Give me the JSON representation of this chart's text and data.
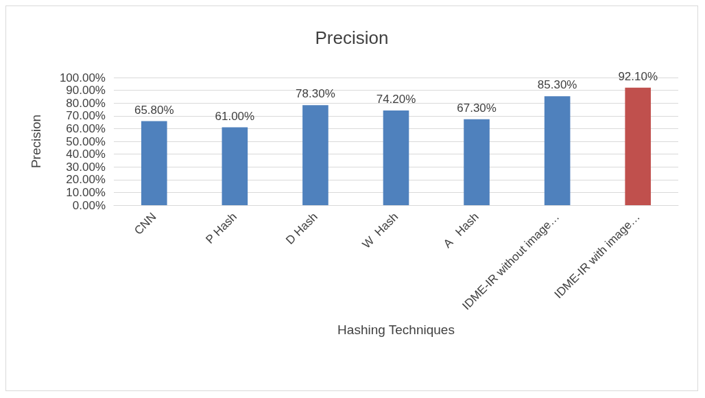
{
  "chart_data": {
    "type": "bar",
    "title": "Precision",
    "xlabel": "Hashing Techniques",
    "ylabel": "Precision",
    "categories": [
      "CNN",
      "P Hash",
      "D Hash",
      "W  Hash",
      "A   Hash",
      "IDME-IR without image…",
      "IDME-IR with image…"
    ],
    "values": [
      65.8,
      61.0,
      78.3,
      74.2,
      67.3,
      85.3,
      92.1
    ],
    "colors": [
      "#4f81bd",
      "#4f81bd",
      "#4f81bd",
      "#4f81bd",
      "#4f81bd",
      "#4f81bd",
      "#c0504d"
    ],
    "value_labels": [
      "65.80%",
      "61.00%",
      "78.30%",
      "74.20%",
      "67.30%",
      "85.30%",
      "92.10%"
    ],
    "ylim": [
      0,
      100
    ],
    "yticks": [
      {
        "value": 0,
        "label": "0.00%"
      },
      {
        "value": 10,
        "label": "10.00%"
      },
      {
        "value": 20,
        "label": "20.00%"
      },
      {
        "value": 30,
        "label": "30.00%"
      },
      {
        "value": 40,
        "label": "40.00%"
      },
      {
        "value": 50,
        "label": "50.00%"
      },
      {
        "value": 60,
        "label": "60.00%"
      },
      {
        "value": 70,
        "label": "70.00%"
      },
      {
        "value": 80,
        "label": "80.00%"
      },
      {
        "value": 90,
        "label": "90.00%"
      },
      {
        "value": 100,
        "label": "100.00%"
      }
    ],
    "grid": "y"
  }
}
